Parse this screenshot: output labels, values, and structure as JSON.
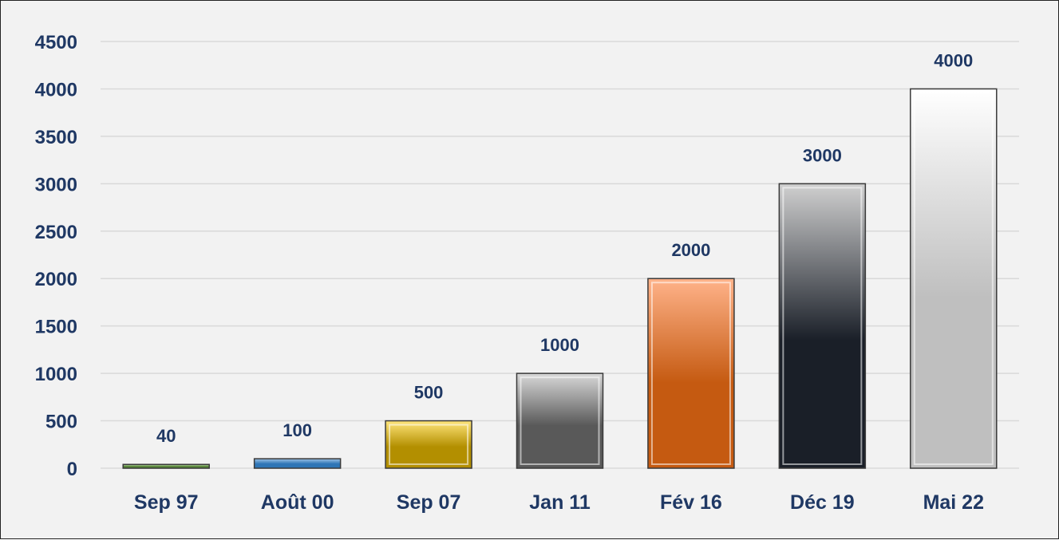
{
  "chart_data": {
    "type": "bar",
    "title": "",
    "xlabel": "",
    "ylabel": "",
    "categories": [
      "Sep 97",
      "Août 00",
      "Sep 07",
      "Jan 11",
      "Fév 16",
      "Déc 19",
      "Mai 22"
    ],
    "values": [
      40,
      100,
      500,
      1000,
      2000,
      3000,
      4000
    ],
    "data_labels": [
      "40",
      "100",
      "500",
      "1000",
      "2000",
      "3000",
      "4000"
    ],
    "ylim": [
      0,
      4500
    ],
    "yticks": [
      "0",
      "500",
      "1000",
      "1500",
      "2000",
      "2500",
      "3000",
      "3500",
      "4000",
      "4500"
    ],
    "grid": true,
    "legend": "none",
    "bar_colors": [
      [
        "#c5e0b4",
        "#548235"
      ],
      [
        "#9dc3e6",
        "#2e75b6"
      ],
      [
        "#ffe57a",
        "#b38f00"
      ],
      [
        "#d9d9d9",
        "#595959"
      ],
      [
        "#ffb38a",
        "#c55a11"
      ],
      [
        "#d0d0d0",
        "#1a1f28"
      ],
      [
        "#ffffff",
        "#bfbfbf"
      ]
    ],
    "colors": {
      "text": "#1f3864",
      "grid": "#d9d9d9",
      "background": "#f2f2f2"
    }
  }
}
